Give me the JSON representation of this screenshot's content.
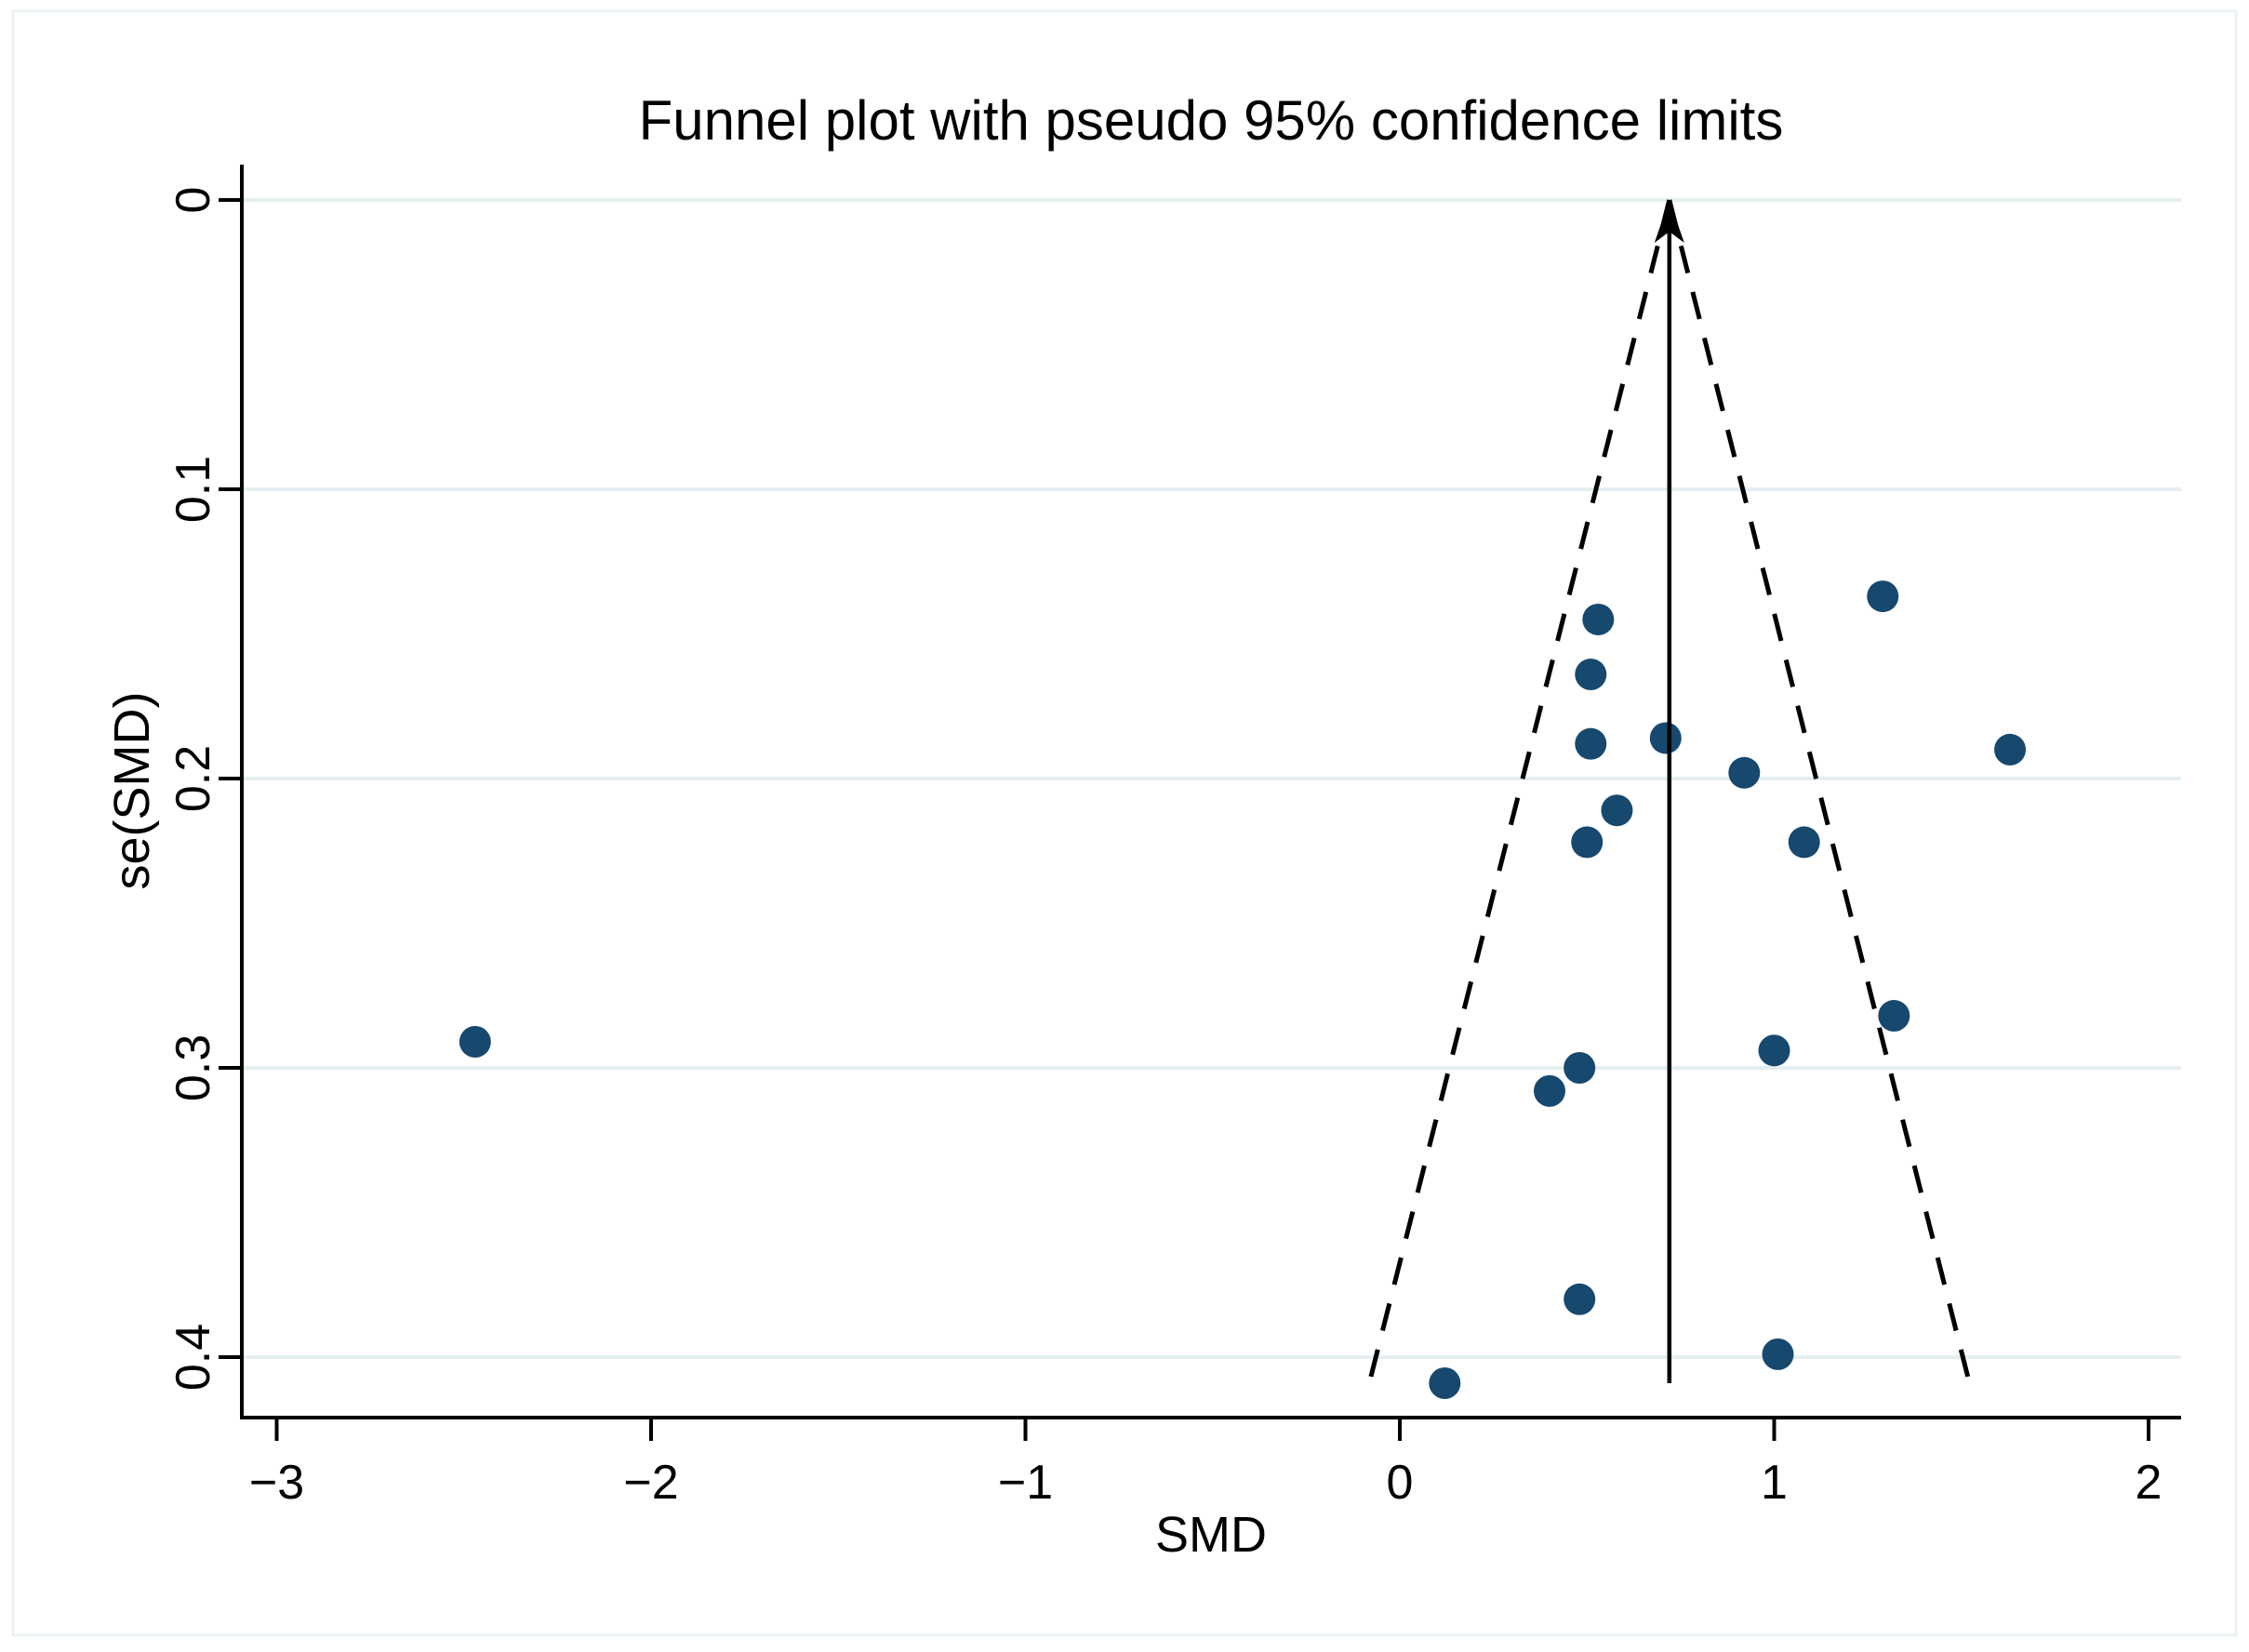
{
  "figure": {
    "title": "Funnel plot with pseudo 95% confidence limits",
    "xlabel": "SMD",
    "ylabel": "se(SMD)"
  },
  "chart_data": {
    "type": "scatter",
    "title": "Funnel plot with pseudo 95% confidence limits",
    "xlabel": "SMD",
    "ylabel": "se(SMD)",
    "xlim": [
      -3.09,
      2.09
    ],
    "ylim": [
      0,
      0.421
    ],
    "y_axis_inverted": true,
    "grid": "horizontal",
    "legend": "none",
    "x_ticks": [
      -3,
      -2,
      -1,
      0,
      1,
      2
    ],
    "x_tick_labels": [
      "−3",
      "−2",
      "−1",
      "0",
      "1",
      "2"
    ],
    "y_ticks": [
      0,
      0.1,
      0.2,
      0.3,
      0.4
    ],
    "y_tick_labels": [
      "0",
      "0.1",
      "0.2",
      "0.3",
      "0.4"
    ],
    "points": [
      {
        "smd": 1.29,
        "se": 0.137
      },
      {
        "smd": 0.53,
        "se": 0.145
      },
      {
        "smd": 0.51,
        "se": 0.164
      },
      {
        "smd": 0.71,
        "se": 0.186
      },
      {
        "smd": 0.51,
        "se": 0.188
      },
      {
        "smd": 1.63,
        "se": 0.19
      },
      {
        "smd": 0.92,
        "se": 0.198
      },
      {
        "smd": 0.58,
        "se": 0.211
      },
      {
        "smd": 0.5,
        "se": 0.222
      },
      {
        "smd": 1.08,
        "se": 0.222
      },
      {
        "smd": 1.32,
        "se": 0.282
      },
      {
        "smd": -2.47,
        "se": 0.291
      },
      {
        "smd": 1.0,
        "se": 0.294
      },
      {
        "smd": 0.48,
        "se": 0.3
      },
      {
        "smd": 0.4,
        "se": 0.308
      },
      {
        "smd": 0.48,
        "se": 0.38
      },
      {
        "smd": 1.01,
        "se": 0.399
      },
      {
        "smd": 0.12,
        "se": 0.409
      }
    ],
    "funnel": {
      "center_smd": 0.72,
      "z": 1.96,
      "se_top": 0,
      "se_bottom": 0.4075,
      "center_line_se_bottom": 0.409,
      "center_line_style": "solid-with-up-arrow",
      "limit_line_style": "dashed"
    },
    "colors": {
      "marker": "#17486e",
      "grid": "#e5eff2",
      "axis": "#000000",
      "background": "#ffffff",
      "frame": "#edf3f5"
    }
  }
}
